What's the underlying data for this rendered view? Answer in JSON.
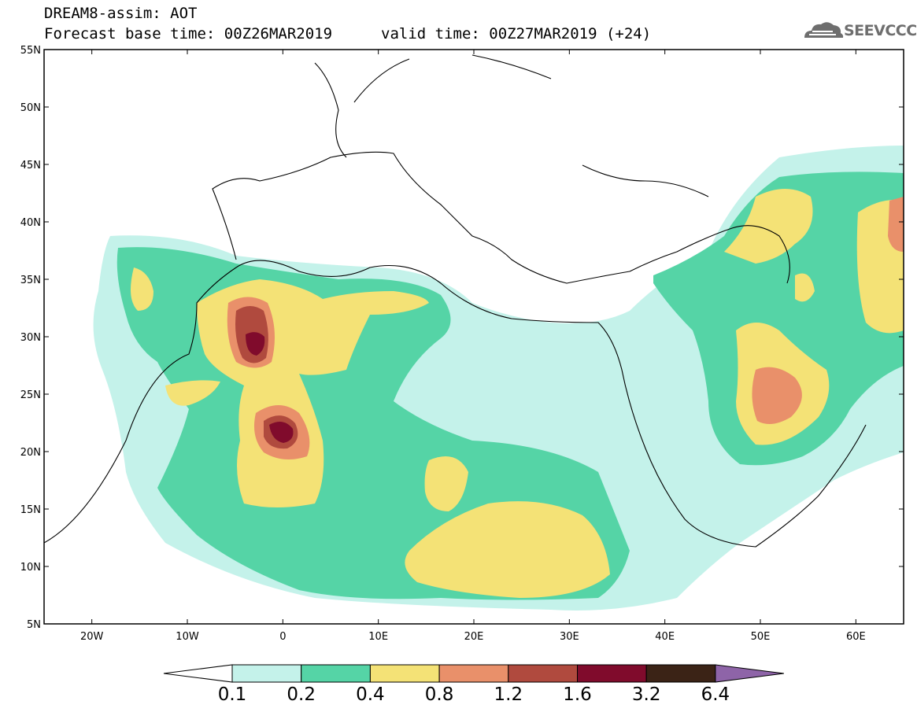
{
  "header": {
    "title": "DREAM8-assim: AOT",
    "base_time": "Forecast base time: 00Z26MAR2019",
    "valid_time": "valid time: 00Z27MAR2019 (+24)"
  },
  "logo": {
    "text": "SEEVCCC",
    "icon": "cloud-icon"
  },
  "map": {
    "lat_range": [
      5,
      55
    ],
    "lon_range": [
      -25,
      65
    ],
    "lat_ticks": [
      "5N",
      "10N",
      "15N",
      "20N",
      "25N",
      "30N",
      "35N",
      "40N",
      "45N",
      "50N",
      "55N"
    ],
    "lon_ticks": [
      "20W",
      "10W",
      "0",
      "10E",
      "20E",
      "30E",
      "40E",
      "50E",
      "60E"
    ]
  },
  "colorbar": {
    "levels": [
      "0.1",
      "0.2",
      "0.4",
      "0.8",
      "1.2",
      "1.6",
      "3.2",
      "6.4"
    ],
    "colors": [
      "#c4f2ea",
      "#55d4a6",
      "#f4e276",
      "#e9906a",
      "#b04a3e",
      "#800b2c",
      "#3b2316",
      "#8e64a8"
    ]
  }
}
